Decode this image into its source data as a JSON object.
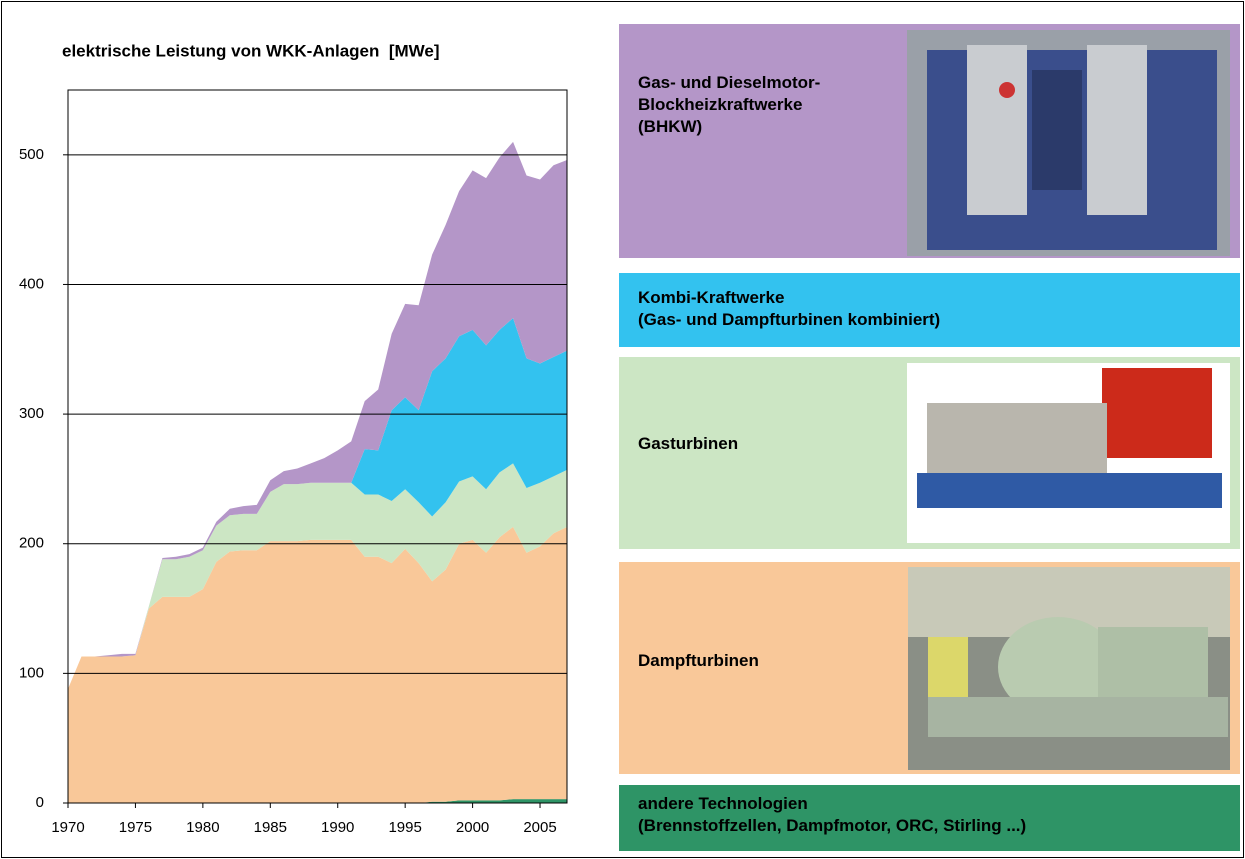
{
  "chart_data": {
    "type": "stacked-area",
    "title": "elektrische Leistung von WKK-Anlagen  [MWe]",
    "x": [
      1970,
      1971,
      1972,
      1973,
      1974,
      1975,
      1976,
      1977,
      1978,
      1979,
      1980,
      1981,
      1982,
      1983,
      1984,
      1985,
      1986,
      1987,
      1988,
      1989,
      1990,
      1991,
      1992,
      1993,
      1994,
      1995,
      1996,
      1997,
      1998,
      1999,
      2000,
      2001,
      2002,
      2003,
      2004,
      2005,
      2006,
      2007
    ],
    "xlim": [
      1970,
      2007
    ],
    "xticks": [
      1970,
      1975,
      1980,
      1985,
      1990,
      1995,
      2000,
      2005
    ],
    "ylim": [
      0,
      550
    ],
    "yticks": [
      0,
      100,
      200,
      300,
      400,
      500
    ],
    "grid": true,
    "series": [
      {
        "name": "andere Technologien\n(Brennstoffzellen, Dampfmotor, ORC, Stirling ...)",
        "color": "#2e9466",
        "values": [
          0,
          0,
          0,
          0,
          0,
          0,
          0,
          0,
          0,
          0,
          0,
          0,
          0,
          0,
          0,
          0,
          0,
          0,
          0,
          0,
          0,
          0,
          0,
          0,
          0,
          0,
          0,
          1,
          1,
          2,
          2,
          2,
          2,
          3,
          3,
          3,
          3,
          3
        ]
      },
      {
        "name": "Dampfturbinen",
        "color": "#f9c899",
        "values": [
          88,
          113,
          113,
          113,
          113,
          114,
          150,
          159,
          159,
          159,
          165,
          186,
          194,
          195,
          195,
          202,
          202,
          202,
          203,
          203,
          203,
          203,
          190,
          190,
          185,
          196,
          185,
          170,
          179,
          198,
          201,
          191,
          203,
          210,
          190,
          195,
          205,
          210
        ]
      },
      {
        "name": "Gasturbinen",
        "color": "#cce6c4",
        "values": [
          0,
          0,
          0,
          0,
          0,
          0,
          2,
          29,
          29,
          31,
          30,
          28,
          28,
          28,
          28,
          38,
          44,
          44,
          44,
          44,
          44,
          44,
          48,
          48,
          48,
          46,
          47,
          50,
          52,
          48,
          49,
          49,
          50,
          49,
          50,
          49,
          44,
          44
        ]
      },
      {
        "name": "Kombi-Kraftwerke\n(Gas- und Dampfturbinen kombiniert)",
        "color": "#33c2ef",
        "values": [
          0,
          0,
          0,
          0,
          0,
          0,
          0,
          0,
          0,
          0,
          0,
          0,
          0,
          0,
          0,
          0,
          0,
          0,
          0,
          0,
          0,
          0,
          35,
          34,
          70,
          71,
          71,
          112,
          111,
          112,
          113,
          111,
          110,
          112,
          100,
          92,
          92,
          92
        ]
      },
      {
        "name": "Gas- und Dieselmotor-\nBlockheizkraftwerke\n(BHKW)",
        "color": "#b496c8",
        "values": [
          0,
          0,
          0,
          1,
          2,
          1,
          0,
          1,
          2,
          2,
          2,
          3,
          5,
          6,
          7,
          9,
          10,
          12,
          15,
          19,
          25,
          32,
          37,
          47,
          59,
          72,
          81,
          90,
          103,
          112,
          123,
          129,
          133,
          136,
          141,
          142,
          148,
          147
        ]
      }
    ]
  }
}
